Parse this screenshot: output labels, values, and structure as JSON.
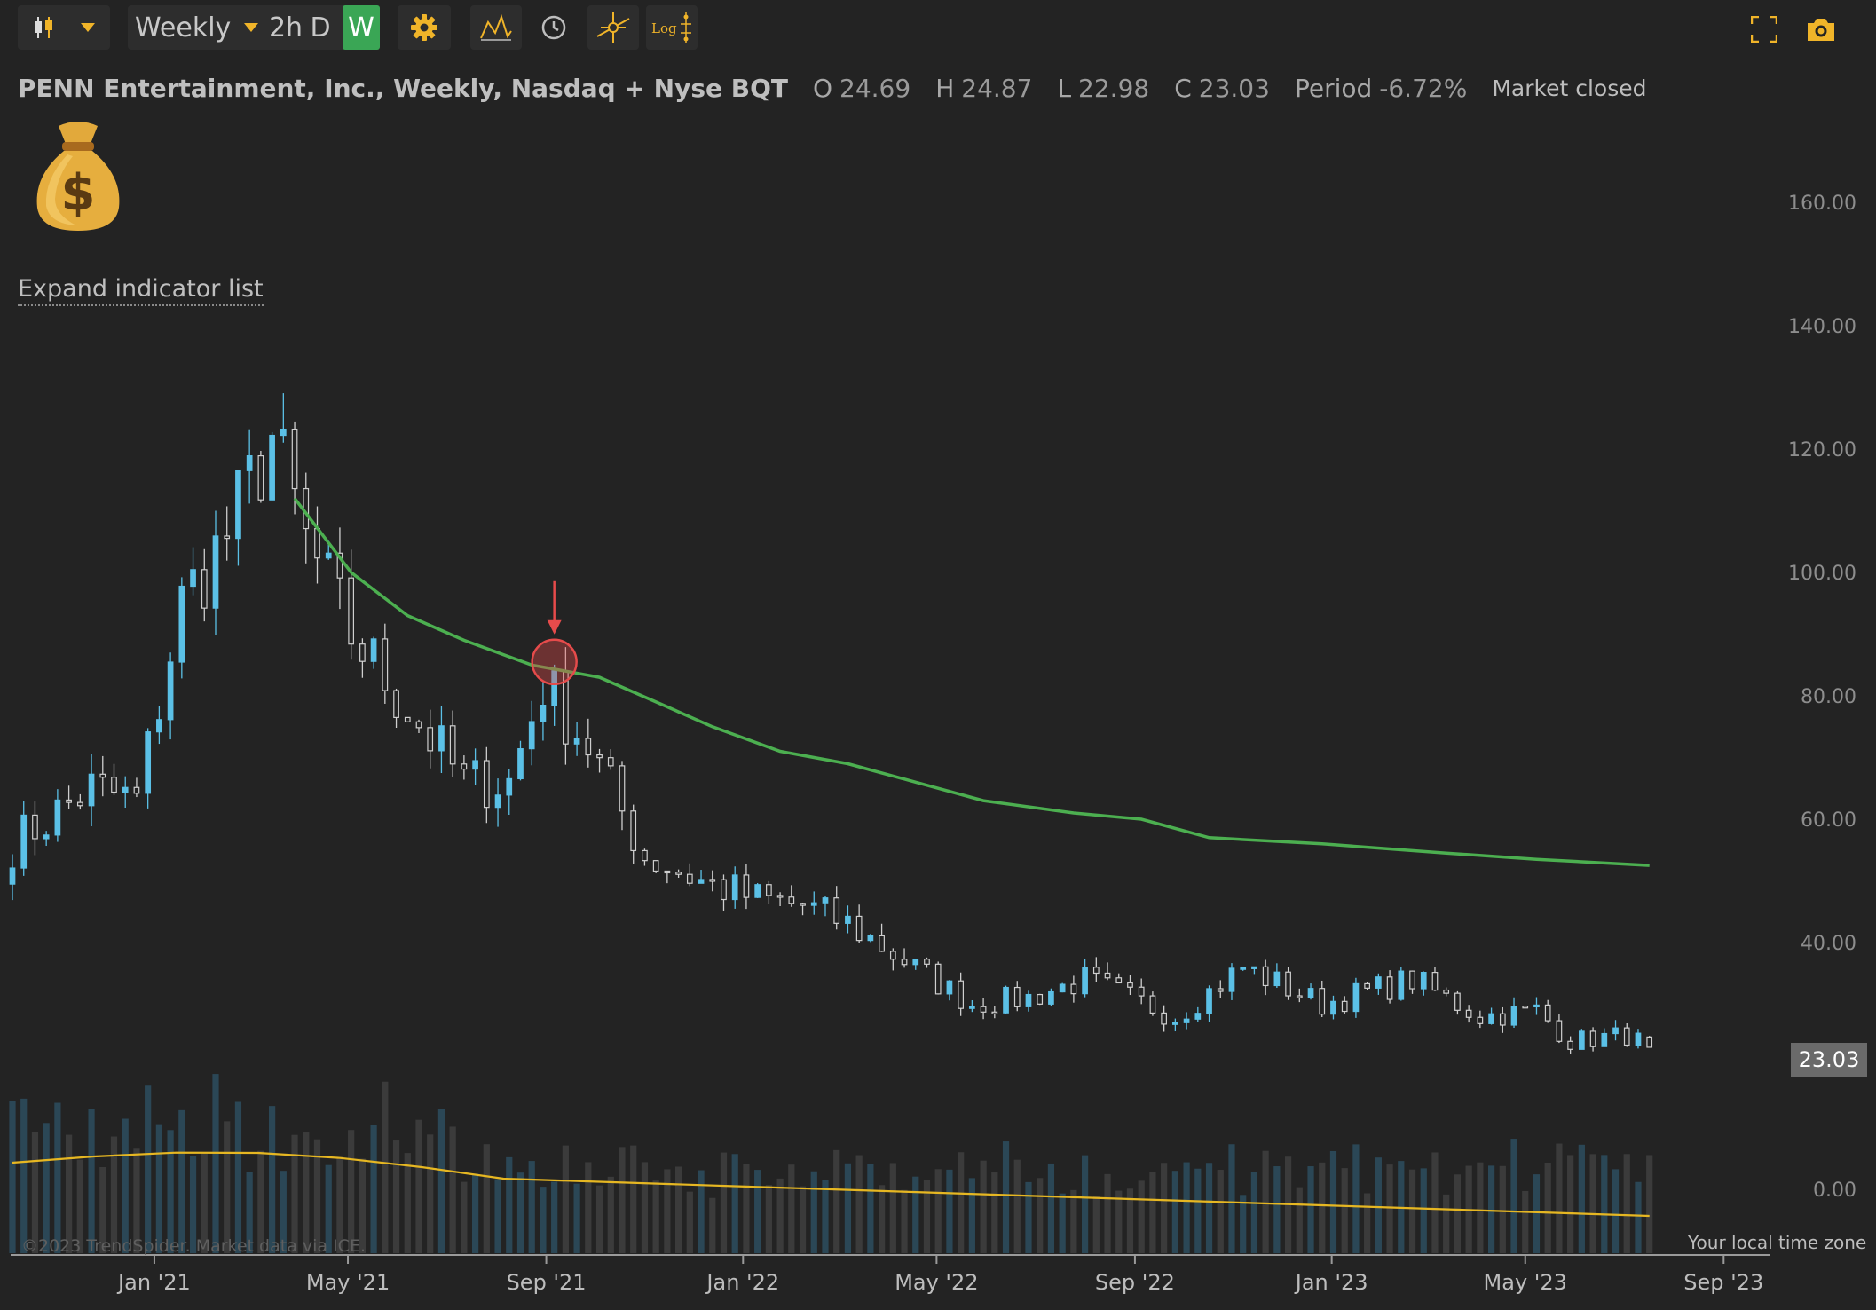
{
  "toolbar": {
    "timeframe": "Weekly",
    "intervals": [
      "2h",
      "D",
      "W"
    ],
    "active_interval": "W",
    "log_label": "Log"
  },
  "header": {
    "symbol_line": "PENN Entertainment, Inc., Weekly, Nasdaq + Nyse BQT",
    "o_label": "O",
    "o": "24.69",
    "h_label": "H",
    "h": "24.87",
    "l_label": "L",
    "l": "22.98",
    "c_label": "C",
    "c": "23.03",
    "period_label": "Period",
    "period": "-6.72%",
    "status": "Market closed"
  },
  "expand_label": "Expand indicator list",
  "last_price": "23.03",
  "footer": {
    "copyright": "©2023 TrendSpider. Market data via ICE.",
    "timezone": "Your local time zone"
  },
  "colors": {
    "background": "#232323",
    "up": "#5bc0e6",
    "down": "#cfcfcf",
    "ma_line": "#4caf50",
    "volume_ma": "#e6b722",
    "accent": "#f0b429",
    "marker": "#e64b4b"
  },
  "icons": [
    "candles-icon",
    "chevron-down-icon",
    "gear-icon",
    "drawing-icon",
    "clock-icon",
    "crosshair-icon",
    "log-icon",
    "fullscreen-icon",
    "camera-icon",
    "money-bag-icon",
    "down-arrow-marker"
  ],
  "chart_data": {
    "type": "candlestick",
    "y_ticks": [
      "160.00",
      "140.00",
      "120.00",
      "100.00",
      "80.00",
      "60.00",
      "40.00",
      "0.00"
    ],
    "x_ticks": [
      "Jan '21",
      "May '21",
      "Sep '21",
      "Jan '22",
      "May '22",
      "Sep '22",
      "Jan '23",
      "May '23",
      "Sep '23"
    ],
    "x_range": [
      "2020-10-05",
      "2023-09-30"
    ],
    "ylim": [
      0,
      170
    ],
    "close_anchors": [
      {
        "date": "2020-10-05",
        "close": 56
      },
      {
        "date": "2020-11-23",
        "close": 65
      },
      {
        "date": "2020-12-21",
        "close": 63
      },
      {
        "date": "2021-01-18",
        "close": 95
      },
      {
        "date": "2021-02-15",
        "close": 106
      },
      {
        "date": "2021-03-15",
        "close": 122
      },
      {
        "date": "2021-04-05",
        "close": 105
      },
      {
        "date": "2021-05-03",
        "close": 90
      },
      {
        "date": "2021-06-07",
        "close": 78
      },
      {
        "date": "2021-07-12",
        "close": 66
      },
      {
        "date": "2021-08-09",
        "close": 66
      },
      {
        "date": "2021-08-30",
        "close": 82
      },
      {
        "date": "2021-09-27",
        "close": 72
      },
      {
        "date": "2021-11-01",
        "close": 54
      },
      {
        "date": "2021-12-06",
        "close": 50
      },
      {
        "date": "2022-01-10",
        "close": 47
      },
      {
        "date": "2022-02-07",
        "close": 46
      },
      {
        "date": "2022-03-07",
        "close": 43
      },
      {
        "date": "2022-04-11",
        "close": 37
      },
      {
        "date": "2022-05-23",
        "close": 30
      },
      {
        "date": "2022-06-27",
        "close": 31
      },
      {
        "date": "2022-08-01",
        "close": 34
      },
      {
        "date": "2022-09-26",
        "close": 28
      },
      {
        "date": "2022-11-07",
        "close": 36
      },
      {
        "date": "2022-12-26",
        "close": 30
      },
      {
        "date": "2023-02-20",
        "close": 34
      },
      {
        "date": "2023-04-03",
        "close": 28
      },
      {
        "date": "2023-05-08",
        "close": 29
      },
      {
        "date": "2023-05-29",
        "close": 24
      },
      {
        "date": "2023-07-03",
        "close": 25
      },
      {
        "date": "2023-07-17",
        "close": 23.03
      }
    ],
    "last_bar": {
      "date": "2023-07-17",
      "open": 24.69,
      "high": 24.87,
      "low": 22.98,
      "close": 23.03
    },
    "moving_average": [
      {
        "date": "2021-03-29",
        "value": 112
      },
      {
        "date": "2021-05-03",
        "value": 100
      },
      {
        "date": "2021-06-07",
        "value": 93
      },
      {
        "date": "2021-07-12",
        "value": 89
      },
      {
        "date": "2021-08-23",
        "value": 85
      },
      {
        "date": "2021-10-04",
        "value": 83
      },
      {
        "date": "2021-11-08",
        "value": 79
      },
      {
        "date": "2021-12-13",
        "value": 75
      },
      {
        "date": "2022-01-24",
        "value": 71
      },
      {
        "date": "2022-03-07",
        "value": 69
      },
      {
        "date": "2022-04-18",
        "value": 66
      },
      {
        "date": "2022-05-30",
        "value": 63
      },
      {
        "date": "2022-07-25",
        "value": 61
      },
      {
        "date": "2022-09-05",
        "value": 60
      },
      {
        "date": "2022-10-17",
        "value": 57
      },
      {
        "date": "2022-12-26",
        "value": 56
      },
      {
        "date": "2023-03-13",
        "value": 54.5
      },
      {
        "date": "2023-05-08",
        "value": 53.5
      },
      {
        "date": "2023-07-17",
        "value": 52.5
      }
    ],
    "annotation": {
      "date": "2021-09-06",
      "value": 85.5,
      "type": "crossover"
    }
  }
}
